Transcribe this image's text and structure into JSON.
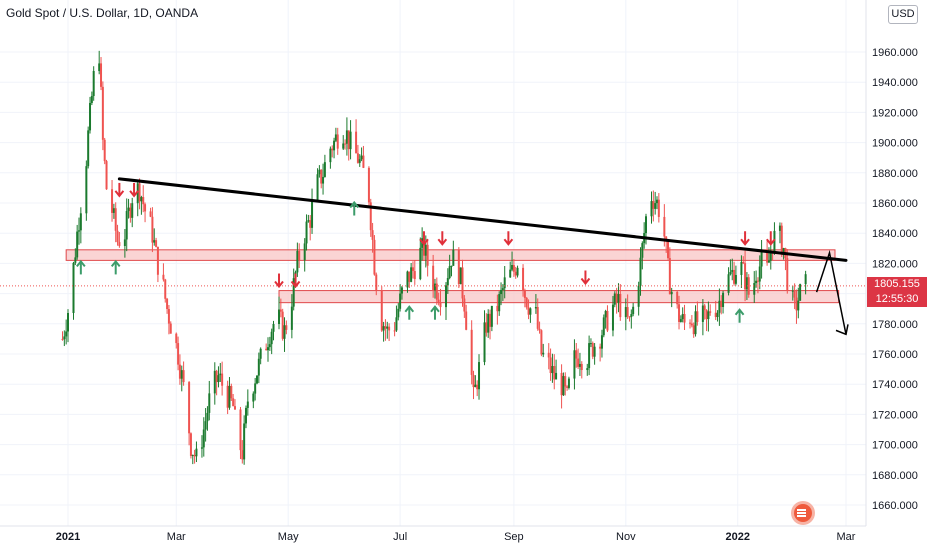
{
  "header": {
    "title": "Gold Spot / U.S. Dollar, 1D, OANDA",
    "currency": "USD"
  },
  "price_badge": {
    "price": "1805.155",
    "countdown": "12:55:30",
    "color": "#dc3545"
  },
  "colors": {
    "up": "#26a69a",
    "up_dark": "#1b7a2e",
    "down": "#ef5350",
    "zone_fill": "#f8c6c6",
    "zone_stroke": "#e0484a",
    "trendline": "#000000",
    "arrow_up": "#3c9c6a",
    "arrow_down": "#e0303a"
  },
  "chart_data": {
    "type": "candlestick",
    "title": "Gold Spot / U.S. Dollar, 1D, OANDA",
    "ylim": [
      1650,
      1985
    ],
    "y_ticks": [
      "1960.000",
      "1940.000",
      "1920.000",
      "1900.000",
      "1880.000",
      "1860.000",
      "1840.000",
      "1820.000",
      "1800.000",
      "1780.000",
      "1760.000",
      "1740.000",
      "1720.000",
      "1700.000",
      "1680.000",
      "1660.000"
    ],
    "x_ticks": [
      {
        "label": "2021",
        "bold": true,
        "date": "2021-01-01"
      },
      {
        "label": "Mar",
        "bold": false,
        "date": "2021-03-01"
      },
      {
        "label": "May",
        "bold": false,
        "date": "2021-05-01"
      },
      {
        "label": "Jul",
        "bold": false,
        "date": "2021-07-01"
      },
      {
        "label": "Sep",
        "bold": false,
        "date": "2021-09-01"
      },
      {
        "label": "Nov",
        "bold": false,
        "date": "2021-11-01"
      },
      {
        "label": "2022",
        "bold": true,
        "date": "2022-01-01"
      },
      {
        "label": "Mar",
        "bold": false,
        "date": "2022-03-01"
      }
    ],
    "price_path": [
      [
        "2020-12-29",
        1770
      ],
      [
        "2021-01-02",
        1795
      ],
      [
        "2021-01-06",
        1840
      ],
      [
        "2021-01-08",
        1860
      ],
      [
        "2021-01-10",
        1875
      ],
      [
        "2021-01-12",
        1905
      ],
      [
        "2021-01-14",
        1930
      ],
      [
        "2021-01-16",
        1955
      ],
      [
        "2021-01-18",
        1960
      ],
      [
        "2021-01-20",
        1900
      ],
      [
        "2021-01-22",
        1870
      ],
      [
        "2021-01-25",
        1855
      ],
      [
        "2021-01-28",
        1835
      ],
      [
        "2021-02-01",
        1840
      ],
      [
        "2021-02-05",
        1865
      ],
      [
        "2021-02-09",
        1870
      ],
      [
        "2021-02-12",
        1855
      ],
      [
        "2021-02-16",
        1840
      ],
      [
        "2021-02-18",
        1825
      ],
      [
        "2021-02-21",
        1810
      ],
      [
        "2021-02-24",
        1790
      ],
      [
        "2021-02-27",
        1775
      ],
      [
        "2021-03-02",
        1760
      ],
      [
        "2021-03-06",
        1730
      ],
      [
        "2021-03-09",
        1700
      ],
      [
        "2021-03-12",
        1690
      ],
      [
        "2021-03-16",
        1710
      ],
      [
        "2021-03-20",
        1735
      ],
      [
        "2021-03-24",
        1745
      ],
      [
        "2021-03-28",
        1735
      ],
      [
        "2021-04-01",
        1725
      ],
      [
        "2021-04-03",
        1705
      ],
      [
        "2021-04-06",
        1695
      ],
      [
        "2021-04-09",
        1730
      ],
      [
        "2021-04-13",
        1745
      ],
      [
        "2021-04-17",
        1760
      ],
      [
        "2021-04-21",
        1775
      ],
      [
        "2021-04-25",
        1785
      ],
      [
        "2021-04-29",
        1775
      ],
      [
        "2021-05-02",
        1790
      ],
      [
        "2021-05-06",
        1820
      ],
      [
        "2021-05-10",
        1840
      ],
      [
        "2021-05-13",
        1850
      ],
      [
        "2021-05-16",
        1870
      ],
      [
        "2021-05-20",
        1880
      ],
      [
        "2021-05-23",
        1895
      ],
      [
        "2021-05-26",
        1900
      ],
      [
        "2021-05-30",
        1910
      ],
      [
        "2021-06-02",
        1905
      ],
      [
        "2021-06-05",
        1895
      ],
      [
        "2021-06-08",
        1890
      ],
      [
        "2021-06-11",
        1880
      ],
      [
        "2021-06-14",
        1865
      ],
      [
        "2021-06-17",
        1820
      ],
      [
        "2021-06-20",
        1785
      ],
      [
        "2021-06-24",
        1775
      ],
      [
        "2021-06-28",
        1780
      ],
      [
        "2021-07-02",
        1800
      ],
      [
        "2021-07-05",
        1810
      ],
      [
        "2021-07-08",
        1815
      ],
      [
        "2021-07-11",
        1825
      ],
      [
        "2021-07-14",
        1830
      ],
      [
        "2021-07-17",
        1815
      ],
      [
        "2021-07-20",
        1805
      ],
      [
        "2021-07-23",
        1800
      ],
      [
        "2021-07-26",
        1810
      ],
      [
        "2021-07-29",
        1825
      ],
      [
        "2021-08-02",
        1815
      ],
      [
        "2021-08-05",
        1795
      ],
      [
        "2021-08-08",
        1760
      ],
      [
        "2021-08-10",
        1730
      ],
      [
        "2021-08-13",
        1750
      ],
      [
        "2021-08-17",
        1780
      ],
      [
        "2021-08-21",
        1785
      ],
      [
        "2021-08-24",
        1795
      ],
      [
        "2021-08-28",
        1810
      ],
      [
        "2021-09-01",
        1815
      ],
      [
        "2021-09-04",
        1825
      ],
      [
        "2021-09-07",
        1800
      ],
      [
        "2021-09-10",
        1790
      ],
      [
        "2021-09-13",
        1785
      ],
      [
        "2021-09-16",
        1760
      ],
      [
        "2021-09-19",
        1755
      ],
      [
        "2021-09-23",
        1745
      ],
      [
        "2021-09-27",
        1740
      ],
      [
        "2021-09-30",
        1730
      ],
      [
        "2021-10-03",
        1755
      ],
      [
        "2021-10-07",
        1760
      ],
      [
        "2021-10-10",
        1755
      ],
      [
        "2021-10-14",
        1765
      ],
      [
        "2021-10-17",
        1770
      ],
      [
        "2021-10-21",
        1780
      ],
      [
        "2021-10-24",
        1790
      ],
      [
        "2021-10-28",
        1795
      ],
      [
        "2021-10-31",
        1785
      ],
      [
        "2021-11-03",
        1780
      ],
      [
        "2021-11-06",
        1795
      ],
      [
        "2021-11-09",
        1820
      ],
      [
        "2021-11-12",
        1850
      ],
      [
        "2021-11-15",
        1865
      ],
      [
        "2021-11-18",
        1860
      ],
      [
        "2021-11-21",
        1850
      ],
      [
        "2021-11-24",
        1815
      ],
      [
        "2021-11-27",
        1795
      ],
      [
        "2021-11-30",
        1785
      ],
      [
        "2021-12-03",
        1780
      ],
      [
        "2021-12-06",
        1785
      ],
      [
        "2021-12-09",
        1780
      ],
      [
        "2021-12-12",
        1785
      ],
      [
        "2021-12-15",
        1780
      ],
      [
        "2021-12-18",
        1795
      ],
      [
        "2021-12-21",
        1790
      ],
      [
        "2021-12-24",
        1805
      ],
      [
        "2021-12-27",
        1810
      ],
      [
        "2021-12-30",
        1815
      ],
      [
        "2022-01-02",
        1820
      ],
      [
        "2022-01-05",
        1810
      ],
      [
        "2022-01-08",
        1795
      ],
      [
        "2022-01-11",
        1815
      ],
      [
        "2022-01-14",
        1820
      ],
      [
        "2022-01-17",
        1815
      ],
      [
        "2022-01-20",
        1835
      ],
      [
        "2022-01-23",
        1840
      ],
      [
        "2022-01-26",
        1830
      ],
      [
        "2022-01-29",
        1800
      ],
      [
        "2022-02-01",
        1790
      ],
      [
        "2022-02-04",
        1800
      ],
      [
        "2022-02-07",
        1805
      ]
    ],
    "support_zones": [
      {
        "date_from": "2020-12-31",
        "date_to": "2022-02-23",
        "low": 1822,
        "high": 1829
      },
      {
        "date_from": "2021-04-26",
        "date_to": "2022-02-25",
        "low": 1794,
        "high": 1802
      }
    ],
    "trendline": [
      [
        "2021-01-29",
        1876
      ],
      [
        "2022-03-01",
        1822
      ]
    ],
    "projection": [
      [
        "2022-02-13",
        1801
      ],
      [
        "2022-02-20",
        1827
      ],
      [
        "2022-03-01",
        1773
      ]
    ],
    "current_price_line": 1805.155,
    "arrows_down": [
      [
        "2021-01-29",
        1868
      ],
      [
        "2021-02-06",
        1868
      ],
      [
        "2021-04-26",
        1808
      ],
      [
        "2021-05-05",
        1808
      ],
      [
        "2021-07-14",
        1836
      ],
      [
        "2021-07-24",
        1836
      ],
      [
        "2021-08-29",
        1836
      ],
      [
        "2021-10-10",
        1810
      ],
      [
        "2022-01-05",
        1836
      ],
      [
        "2022-01-19",
        1836
      ]
    ],
    "arrows_up": [
      [
        "2021-01-08",
        1818
      ],
      [
        "2021-01-27",
        1818
      ],
      [
        "2021-06-06",
        1857
      ],
      [
        "2021-07-06",
        1788
      ],
      [
        "2021-07-20",
        1788
      ],
      [
        "2022-01-02",
        1786
      ]
    ]
  }
}
